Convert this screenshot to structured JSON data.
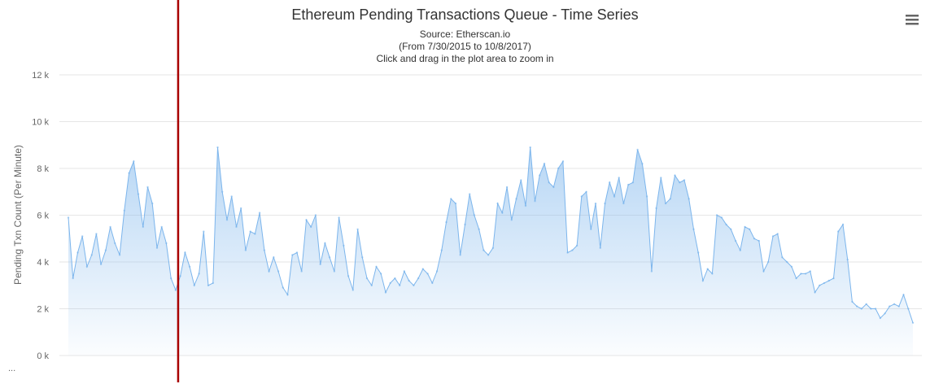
{
  "header": {
    "title": "Ethereum Pending Transactions Queue - Time Series",
    "source": "Source: Etherscan.io",
    "range": "(From 7/30/2015 to 10/8/2017)",
    "hint": "Click and drag in the plot area to zoom in"
  },
  "menu_icon": "hamburger-menu-icon",
  "colors": {
    "series_line": "#7cb5ec",
    "grid": "#e6e6e6",
    "cursor": "#a80000"
  },
  "footer_ellipsis": "...",
  "chart_data": {
    "type": "area",
    "title": "Ethereum Pending Transactions Queue - Time Series",
    "subtitle": "Source: Etherscan.io",
    "xlabel": "",
    "ylabel": "Pending Txn Count (Per Minute)",
    "ylim": [
      0,
      12000
    ],
    "yticks": [
      0,
      2000,
      4000,
      6000,
      8000,
      10000,
      12000
    ],
    "ytick_labels": [
      "0 k",
      "2 k",
      "4 k",
      "6 k",
      "8 k",
      "10 k",
      "12 k"
    ],
    "grid": true,
    "legend": "none",
    "cursor_fraction": 0.13,
    "series": [
      {
        "values": [
          5900,
          3300,
          4400,
          5100,
          3800,
          4300,
          5200,
          3900,
          4500,
          5500,
          4800,
          4300,
          6200,
          7800,
          8300,
          6900,
          5500,
          7200,
          6500,
          4600,
          5500,
          4800,
          3300,
          2800,
          3400,
          4400,
          3800,
          3000,
          3500,
          5300,
          3000,
          3100,
          8900,
          7000,
          5800,
          6800,
          5500,
          6300,
          4500,
          5300,
          5200,
          6100,
          4500,
          3600,
          4200,
          3600,
          2900,
          2600,
          4300,
          4400,
          3600,
          5800,
          5500,
          6000,
          3900,
          4800,
          4200,
          3600,
          5900,
          4700,
          3400,
          2800,
          5400,
          4200,
          3300,
          3000,
          3800,
          3500,
          2700,
          3100,
          3300,
          3000,
          3600,
          3200,
          3000,
          3300,
          3700,
          3500,
          3100,
          3600,
          4500,
          5700,
          6700,
          6500,
          4300,
          5600,
          6900,
          6000,
          5400,
          4500,
          4300,
          4600,
          6500,
          6100,
          7200,
          5800,
          6700,
          7500,
          6400,
          8900,
          6600,
          7700,
          8200,
          7400,
          7200,
          8000,
          8300,
          4400,
          4500,
          4700,
          6800,
          7000,
          5400,
          6500,
          4600,
          6500,
          7400,
          6800,
          7600,
          6500,
          7300,
          7400,
          8800,
          8200,
          6800,
          3600,
          6300,
          7600,
          6500,
          6700,
          7700,
          7400,
          7500,
          6700,
          5400,
          4400,
          3200,
          3700,
          3500,
          6000,
          5900,
          5600,
          5400,
          4900,
          4500,
          5500,
          5400,
          5000,
          4900,
          3600,
          4000,
          5100,
          5200,
          4200,
          4000,
          3800,
          3300,
          3500,
          3500,
          3600,
          2700,
          3000,
          3100,
          3200,
          3300,
          5300,
          5600,
          4100,
          2300,
          2100,
          2000,
          2200,
          2000,
          2000,
          1600,
          1800,
          2100,
          2200,
          2100,
          2600,
          2000,
          1400
        ]
      }
    ]
  }
}
